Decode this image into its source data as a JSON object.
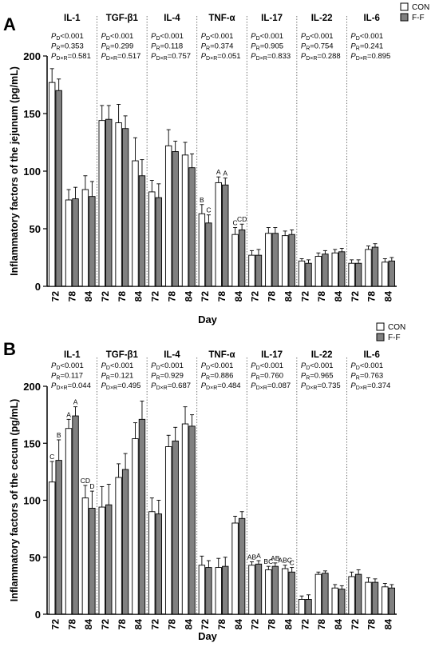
{
  "legend": [
    {
      "label": "CON",
      "color": "#ffffff"
    },
    {
      "label": "F-F",
      "color": "#808080"
    }
  ],
  "chart_data": [
    {
      "type": "bar",
      "panel_label": "A",
      "ylabel": "Inflammatory factors of the jejunum (pg/mL)",
      "xlabel": "Day",
      "ylim": [
        0,
        200
      ],
      "yticks": [
        0,
        50,
        100,
        150,
        200
      ],
      "legend_position": "top-right",
      "groups": [
        {
          "name": "IL-1",
          "stats": [
            "P_D<0.001",
            "P_R=0.353",
            "P_D×R=0.581"
          ],
          "days": [
            "72",
            "78",
            "84"
          ],
          "con": [
            177,
            75,
            84
          ],
          "ff": [
            170,
            76,
            78
          ],
          "con_err": [
            12,
            9,
            12
          ],
          "ff_err": [
            10,
            10,
            13
          ],
          "con_letters": [
            "",
            "",
            ""
          ],
          "ff_letters": [
            "",
            "",
            ""
          ]
        },
        {
          "name": "TGF-β1",
          "stats": [
            "P_D<0.001",
            "P_R=0.299",
            "P_D×R=0.517"
          ],
          "days": [
            "72",
            "78",
            "84"
          ],
          "con": [
            144,
            142,
            109
          ],
          "ff": [
            145,
            137,
            96
          ],
          "con_err": [
            13,
            16,
            20
          ],
          "ff_err": [
            12,
            11,
            14
          ],
          "con_letters": [
            "",
            "",
            ""
          ],
          "ff_letters": [
            "",
            "",
            ""
          ]
        },
        {
          "name": "IL-4",
          "stats": [
            "P_D<0.001",
            "P_R=0.118",
            "P_D×R=0.757"
          ],
          "days": [
            "72",
            "78",
            "84"
          ],
          "con": [
            82,
            122,
            114
          ],
          "ff": [
            77,
            117,
            103
          ],
          "con_err": [
            10,
            14,
            11
          ],
          "ff_err": [
            12,
            9,
            12
          ],
          "con_letters": [
            "",
            "",
            ""
          ],
          "ff_letters": [
            "",
            "",
            ""
          ]
        },
        {
          "name": "TNF-α",
          "stats": [
            "P_D<0.001",
            "P_R=0.374",
            "P_D×R=0.051"
          ],
          "days": [
            "72",
            "78",
            "84"
          ],
          "con": [
            63,
            90,
            45
          ],
          "ff": [
            55,
            88,
            49
          ],
          "con_err": [
            8,
            5,
            6
          ],
          "ff_err": [
            7,
            6,
            5
          ],
          "con_letters": [
            "B",
            "A",
            "C"
          ],
          "ff_letters": [
            "C",
            "A",
            "CD"
          ]
        },
        {
          "name": "IL-17",
          "stats": [
            "P_D<0.001",
            "P_R=0.905",
            "P_D×R=0.833"
          ],
          "days": [
            "72",
            "78",
            "84"
          ],
          "con": [
            27,
            46,
            44
          ],
          "ff": [
            27,
            46,
            45
          ],
          "con_err": [
            4,
            5,
            4
          ],
          "ff_err": [
            5,
            5,
            4
          ],
          "con_letters": [
            "",
            "",
            ""
          ],
          "ff_letters": [
            "",
            "",
            ""
          ]
        },
        {
          "name": "IL-22",
          "stats": [
            "P_D<0.001",
            "P_R=0.754",
            "P_D×R=0.288"
          ],
          "days": [
            "72",
            "78",
            "84"
          ],
          "con": [
            22,
            26,
            29
          ],
          "ff": [
            20,
            28,
            30
          ],
          "con_err": [
            2,
            3,
            3
          ],
          "ff_err": [
            3,
            3,
            3
          ],
          "con_letters": [
            "",
            "",
            ""
          ],
          "ff_letters": [
            "",
            "",
            ""
          ]
        },
        {
          "name": "IL-6",
          "stats": [
            "P_D<0.001",
            "P_R=0.241",
            "P_D×R=0.895"
          ],
          "days": [
            "72",
            "78",
            "84"
          ],
          "con": [
            20,
            32,
            21
          ],
          "ff": [
            20,
            34,
            22
          ],
          "con_err": [
            3,
            3,
            3
          ],
          "ff_err": [
            3,
            3,
            3
          ],
          "con_letters": [
            "",
            "",
            ""
          ],
          "ff_letters": [
            "",
            "",
            ""
          ]
        }
      ]
    },
    {
      "type": "bar",
      "panel_label": "B",
      "ylabel": "Inflammatory factors of the cecum (pg/mL)",
      "xlabel": "Day",
      "ylim": [
        0,
        200
      ],
      "yticks": [
        0,
        50,
        100,
        150,
        200
      ],
      "legend_position": "top-right",
      "groups": [
        {
          "name": "IL-1",
          "stats": [
            "P_D<0.001",
            "P_R=0.117",
            "P_D×R=0.044"
          ],
          "days": [
            "72",
            "78",
            "84"
          ],
          "con": [
            116,
            163,
            102
          ],
          "ff": [
            135,
            174,
            93
          ],
          "con_err": [
            18,
            8,
            11
          ],
          "ff_err": [
            18,
            8,
            15
          ],
          "con_letters": [
            "C",
            "A",
            "CD"
          ],
          "ff_letters": [
            "B",
            "A",
            "D"
          ]
        },
        {
          "name": "TGF-β1",
          "stats": [
            "P_D<0.001",
            "P_R=0.121",
            "P_D×R=0.495"
          ],
          "days": [
            "72",
            "78",
            "84"
          ],
          "con": [
            94,
            120,
            154
          ],
          "ff": [
            96,
            127,
            171
          ],
          "con_err": [
            18,
            12,
            14
          ],
          "ff_err": [
            18,
            14,
            16
          ],
          "con_letters": [
            "",
            "",
            ""
          ],
          "ff_letters": [
            "",
            "",
            ""
          ]
        },
        {
          "name": "IL-4",
          "stats": [
            "P_D<0.001",
            "P_R=0.929",
            "P_D×R=0.687"
          ],
          "days": [
            "72",
            "78",
            "84"
          ],
          "con": [
            90,
            147,
            167
          ],
          "ff": [
            88,
            152,
            165
          ],
          "con_err": [
            12,
            10,
            15
          ],
          "ff_err": [
            12,
            12,
            10
          ],
          "con_letters": [
            "",
            "",
            ""
          ],
          "ff_letters": [
            "",
            "",
            ""
          ]
        },
        {
          "name": "TNF-α",
          "stats": [
            "P_D<0.001",
            "P_R=0.886",
            "P_D×R=0.484"
          ],
          "days": [
            "72",
            "78",
            "84"
          ],
          "con": [
            43,
            41,
            80
          ],
          "ff": [
            41,
            42,
            84
          ],
          "con_err": [
            8,
            8,
            6
          ],
          "ff_err": [
            6,
            8,
            6
          ],
          "con_letters": [
            "",
            "",
            ""
          ],
          "ff_letters": [
            "",
            "",
            ""
          ]
        },
        {
          "name": "IL-17",
          "stats": [
            "P_D<0.001",
            "P_R=0.760",
            "P_D×R=0.087"
          ],
          "days": [
            "72",
            "78",
            "84"
          ],
          "con": [
            43,
            39,
            40
          ],
          "ff": [
            44,
            42,
            37
          ],
          "con_err": [
            3,
            3,
            3
          ],
          "ff_err": [
            3,
            3,
            4
          ],
          "con_letters": [
            "AB",
            "BC",
            "ABC"
          ],
          "ff_letters": [
            "A",
            "AB",
            "C"
          ]
        },
        {
          "name": "IL-22",
          "stats": [
            "P_D<0.001",
            "P_R=0.965",
            "P_D×R=0.735"
          ],
          "days": [
            "72",
            "78",
            "84"
          ],
          "con": [
            13,
            35,
            23
          ],
          "ff": [
            13,
            36,
            22
          ],
          "con_err": [
            3,
            2,
            3
          ],
          "ff_err": [
            4,
            2,
            3
          ],
          "con_letters": [
            "",
            "",
            ""
          ],
          "ff_letters": [
            "",
            "",
            ""
          ]
        },
        {
          "name": "IL-6",
          "stats": [
            "P_D<0.001",
            "P_R=0.763",
            "P_D×R=0.374"
          ],
          "days": [
            "72",
            "78",
            "84"
          ],
          "con": [
            33,
            28,
            24
          ],
          "ff": [
            35,
            28,
            23
          ],
          "con_err": [
            4,
            4,
            3
          ],
          "ff_err": [
            4,
            3,
            3
          ],
          "con_letters": [
            "",
            "",
            ""
          ],
          "ff_letters": [
            "",
            "",
            ""
          ]
        }
      ]
    }
  ]
}
